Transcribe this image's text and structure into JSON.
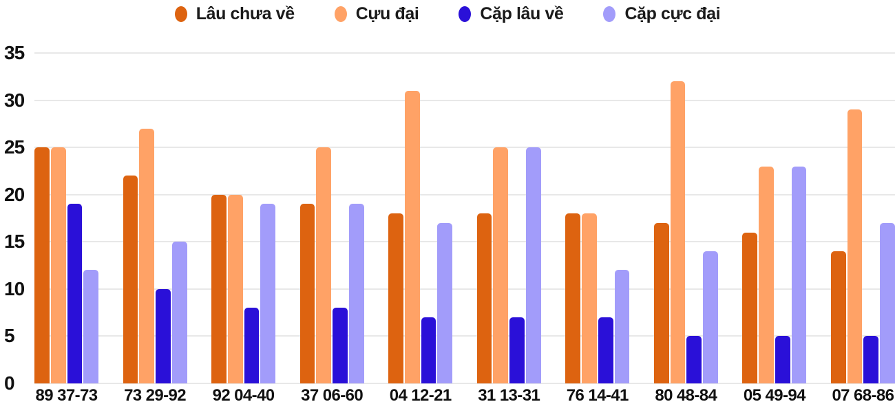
{
  "chart_data": {
    "type": "bar",
    "title": "",
    "xlabel": "",
    "ylabel": "",
    "categories": [
      "89 37-73",
      "73 29-92",
      "92 04-40",
      "37 06-60",
      "04 12-21",
      "31 13-31",
      "76 14-41",
      "80 48-84",
      "05 49-94",
      "07 68-86"
    ],
    "series": [
      {
        "name": "Lâu chưa về",
        "color": "#dd6310",
        "values": [
          25,
          22,
          20,
          19,
          18,
          18,
          18,
          17,
          16,
          14
        ]
      },
      {
        "name": "Cựu đại",
        "color": "#ffa266",
        "values": [
          25,
          27,
          20,
          25,
          31,
          25,
          18,
          32,
          23,
          29
        ]
      },
      {
        "name": "Cặp lâu về",
        "color": "#2a10d8",
        "values": [
          19,
          10,
          8,
          8,
          7,
          7,
          7,
          5,
          5,
          5
        ]
      },
      {
        "name": "Cặp cực đại",
        "color": "#a29cfa",
        "values": [
          12,
          15,
          19,
          19,
          17,
          25,
          12,
          14,
          23,
          17
        ]
      }
    ],
    "ylim": [
      0,
      35
    ],
    "yticks": [
      0,
      5,
      10,
      15,
      20,
      25,
      30,
      35
    ],
    "grid": true,
    "grid_color": "#e8e8e8",
    "legend_position": "top",
    "text_color": "#111111",
    "background_color": "#ffffff"
  }
}
